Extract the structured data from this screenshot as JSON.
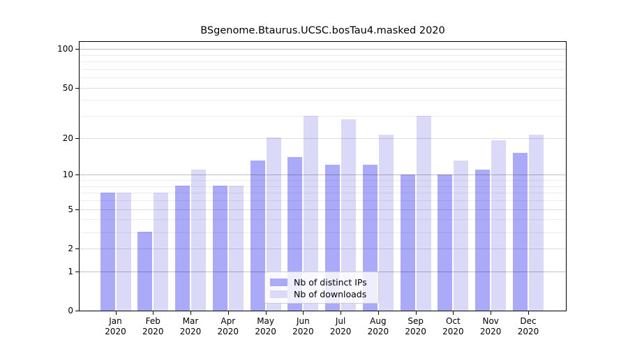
{
  "title": "BSgenome.Btaurus.UCSC.bosTau4.masked 2020",
  "chart_data": {
    "type": "bar",
    "title": "BSgenome.Btaurus.UCSC.bosTau4.masked 2020",
    "categories": [
      "Jan",
      "Feb",
      "Mar",
      "Apr",
      "May",
      "Jun",
      "Jul",
      "Aug",
      "Sep",
      "Oct",
      "Nov",
      "Dec"
    ],
    "year": "2020",
    "series": [
      {
        "name": "Nb of distinct IPs",
        "color": "#aaaaf8",
        "values": [
          7,
          3,
          8,
          8,
          13,
          14,
          12,
          12,
          10,
          10,
          11,
          15
        ]
      },
      {
        "name": "Nb of downloads",
        "color": "#dadaf8",
        "values": [
          7,
          7,
          11,
          8,
          20,
          30,
          28,
          21,
          30,
          13,
          19,
          21
        ]
      }
    ],
    "y_axis": {
      "scale": "log1p",
      "tick_values": [
        0,
        1,
        2,
        5,
        10,
        20,
        50,
        100
      ],
      "minor_gridline_values": [
        3,
        4,
        6,
        7,
        8,
        9,
        30,
        40,
        60,
        70,
        80,
        90
      ],
      "range_max": 115
    },
    "x_axis": {
      "tick_label_format": "month over year, two lines"
    },
    "legend_position": "lower center",
    "grid": true
  },
  "colors": {
    "background": "#ffffff",
    "axis": "#000000",
    "text": "#000000",
    "decade_gridline": "rgba(0,0,0,0.25)",
    "labeled_gridline": "rgba(0,0,0,0.13)",
    "minor_gridline": "rgba(0,0,0,0.07)",
    "legend_background": "rgba(255,255,255,0.8)",
    "legend_border": "#cccccc"
  }
}
